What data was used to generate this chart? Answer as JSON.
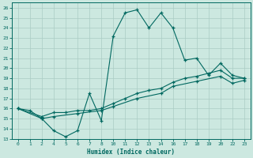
{
  "xlabel": "Humidex (Indice chaleur)",
  "bg_color": "#cce8e0",
  "line_color": "#006860",
  "grid_color": "#aaccc4",
  "xtick_labels": [
    "0",
    "1",
    "2",
    "4",
    "5",
    "6",
    "7",
    "8",
    "10",
    "11",
    "12",
    "13",
    "14",
    "16",
    "17",
    "18",
    "19",
    "20",
    "22",
    "23"
  ],
  "ytick_labels": [
    "13",
    "14",
    "15",
    "16",
    "17",
    "18",
    "19",
    "20",
    "21",
    "22",
    "23",
    "24",
    "25",
    "26"
  ],
  "ylim": [
    13,
    26.5
  ],
  "line1_pos": [
    0,
    1,
    2,
    3,
    4,
    5,
    6,
    7,
    8,
    9,
    10,
    11,
    12,
    13,
    14,
    15,
    16,
    17,
    18,
    19
  ],
  "line1_y": [
    16.0,
    15.8,
    15.0,
    13.8,
    13.2,
    13.8,
    17.5,
    14.8,
    23.2,
    25.5,
    25.8,
    24.0,
    25.5,
    24.0,
    20.8,
    21.0,
    19.3,
    20.5,
    19.3,
    19.0
  ],
  "line2_pos": [
    0,
    2,
    3,
    4,
    5,
    6,
    7,
    8,
    9,
    10,
    11,
    12,
    13,
    14,
    15,
    16,
    17,
    18,
    19
  ],
  "line2_y": [
    16.0,
    15.2,
    15.6,
    15.6,
    15.8,
    15.8,
    16.0,
    16.5,
    17.0,
    17.5,
    17.8,
    18.0,
    18.6,
    19.0,
    19.2,
    19.5,
    19.8,
    19.0,
    19.0
  ],
  "line3_pos": [
    0,
    2,
    3,
    5,
    7,
    8,
    10,
    12,
    13,
    15,
    17,
    18,
    19
  ],
  "line3_y": [
    16.0,
    15.0,
    15.2,
    15.5,
    15.8,
    16.2,
    17.0,
    17.5,
    18.2,
    18.7,
    19.2,
    18.5,
    18.8
  ]
}
